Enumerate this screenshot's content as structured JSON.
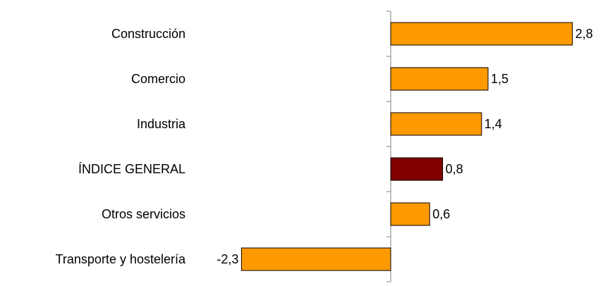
{
  "chart_data": {
    "type": "bar",
    "orientation": "horizontal",
    "categories": [
      "Construcción",
      "Comercio",
      "Industria",
      "ÍNDICE GENERAL",
      "Otros servicios",
      "Transporte y hostelería"
    ],
    "values": [
      2.8,
      1.5,
      1.4,
      0.8,
      0.6,
      -2.3
    ],
    "value_labels": [
      "2,8",
      "1,5",
      "1,4",
      "0,8",
      "0,6",
      "-2,3"
    ],
    "colors": [
      "#FF9900",
      "#FF9900",
      "#FF9900",
      "#800000",
      "#FF9900",
      "#FF9900"
    ],
    "bar_border_color": "#000000",
    "axis_color": "#808080",
    "xlim": [
      -2.3,
      2.8
    ],
    "grid": false,
    "legend": "none",
    "title": "",
    "xlabel": "",
    "ylabel": ""
  }
}
